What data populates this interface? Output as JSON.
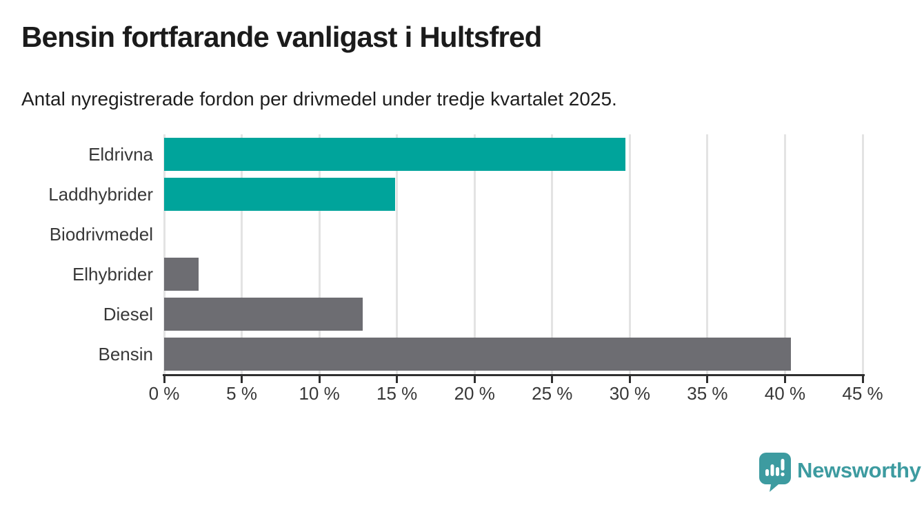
{
  "header": {
    "title": "Bensin fortfarande vanligast i Hultsfred",
    "subtitle": "Antal nyregistrerade fordon per drivmedel under tredje kvartalet 2025."
  },
  "chart_data": {
    "type": "bar",
    "orientation": "horizontal",
    "title": "Bensin fortfarande vanligast i Hultsfred",
    "subtitle": "Antal nyregistrerade fordon per drivmedel under tredje kvartalet 2025.",
    "categories": [
      "Eldrivna",
      "Laddhybrider",
      "Biodrivmedel",
      "Elhybrider",
      "Diesel",
      "Bensin"
    ],
    "values": [
      29.7,
      14.9,
      0,
      2.2,
      12.8,
      40.4
    ],
    "unit": "%",
    "bar_colors": [
      "#00a49b",
      "#00a49b",
      "#00a49b",
      "#6d6d72",
      "#6d6d72",
      "#6d6d72"
    ],
    "x_ticks": [
      0,
      5,
      10,
      15,
      20,
      25,
      30,
      35,
      40,
      45
    ],
    "x_tick_suffix": " %",
    "xlim": [
      0,
      45
    ],
    "grid": true,
    "gridline_color": "#e3e3e3",
    "axis_color": "#2f2f2f",
    "legend": "none"
  },
  "footer": {
    "brand": "Newsworthy",
    "brand_color": "#3d9ba0",
    "logo_icon": "speech-bubble-bar-chart-icon"
  }
}
